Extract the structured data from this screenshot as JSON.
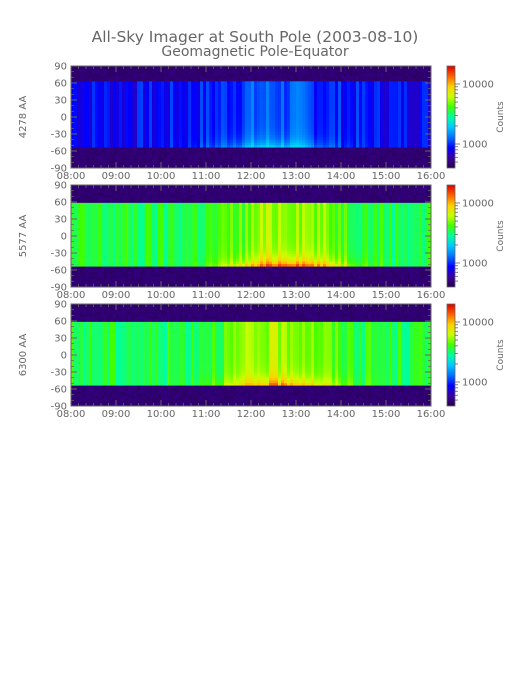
{
  "figure": {
    "title": "All-Sky Imager at South Pole (2003-08-10)",
    "subtitle": "Geomagnetic Pole-Equator"
  },
  "colors": {
    "background": "#ffffff",
    "axis": "#666666",
    "colormap": [
      "#26004a",
      "#3a00a0",
      "#0000ff",
      "#0070ff",
      "#00c8ff",
      "#00ffa0",
      "#40ff00",
      "#c8ff00",
      "#ffd000",
      "#ff6000",
      "#d80000"
    ]
  },
  "chart_data": [
    {
      "type": "heatmap",
      "panel": "4278 AA",
      "ylabel": "4278 AA",
      "yticks": [
        "90",
        "60",
        "30",
        "0",
        "-30",
        "-60",
        "-90"
      ],
      "ylim": [
        -90,
        90
      ],
      "xticks": [
        "08:00",
        "09:00",
        "10:00",
        "11:00",
        "12:00",
        "13:00",
        "14:00",
        "15:00",
        "16:00"
      ],
      "xlim": [
        "08:00",
        "16:00"
      ],
      "colorbar": {
        "label": "Counts",
        "ticks": [
          "10000",
          "1000"
        ],
        "scale": "log"
      },
      "valid_range": [
        -55,
        62
      ],
      "baseline_level": 0.2,
      "peak": {
        "time_center": "12:30",
        "level": 0.45,
        "latitude": -55
      }
    },
    {
      "type": "heatmap",
      "panel": "5577 AA",
      "ylabel": "5577 AA",
      "yticks": [
        "90",
        "60",
        "30",
        "0",
        "-30",
        "-60",
        "-90"
      ],
      "ylim": [
        -90,
        90
      ],
      "xticks": [
        "08:00",
        "09:00",
        "10:00",
        "11:00",
        "12:00",
        "13:00",
        "14:00",
        "15:00",
        "16:00"
      ],
      "xlim": [
        "08:00",
        "16:00"
      ],
      "colorbar": {
        "label": "Counts",
        "ticks": [
          "10000",
          "1000"
        ],
        "scale": "log"
      },
      "valid_range": [
        -52,
        60
      ],
      "baseline_level": 0.55,
      "peak": {
        "time_center": "12:50",
        "level": 0.92,
        "latitude": -52
      }
    },
    {
      "type": "heatmap",
      "panel": "6300 AA",
      "ylabel": "6300 AA",
      "yticks": [
        "90",
        "60",
        "30",
        "0",
        "-30",
        "-60",
        "-90"
      ],
      "ylim": [
        -90,
        90
      ],
      "xticks": [
        "08:00",
        "09:00",
        "10:00",
        "11:00",
        "12:00",
        "13:00",
        "14:00",
        "15:00",
        "16:00"
      ],
      "xlim": [
        "08:00",
        "16:00"
      ],
      "colorbar": {
        "label": "Counts",
        "ticks": [
          "10000",
          "1000"
        ],
        "scale": "log"
      },
      "valid_range": [
        -55,
        60
      ],
      "baseline_level": 0.55,
      "peak": {
        "time_center": "12:40",
        "level": 0.9,
        "latitude": -55
      }
    }
  ]
}
